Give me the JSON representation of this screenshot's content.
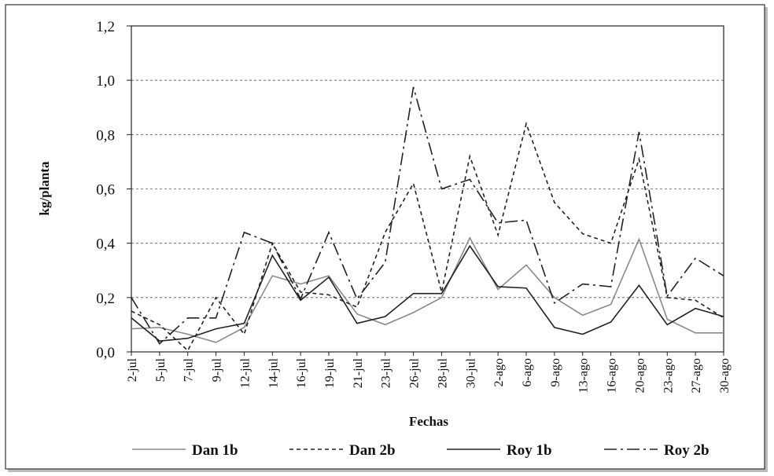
{
  "chart_data": {
    "type": "line",
    "y_label": "kg/planta",
    "x_label": "Fechas",
    "categories": [
      "2-jul",
      "5-jul",
      "7-jul",
      "9-jul",
      "12-jul",
      "14-jul",
      "16-jul",
      "19-jul",
      "21-jul",
      "23-jul",
      "26-jul",
      "28-jul",
      "30-jul",
      "2-ago",
      "6-ago",
      "9-ago",
      "13-ago",
      "16-ago",
      "20-ago",
      "23-ago",
      "27-ago",
      "30-ago"
    ],
    "series": [
      {
        "name": "Dan 1b",
        "color": "#8a8a8a",
        "line_style": "solid",
        "values": [
          0.085,
          0.09,
          0.065,
          0.035,
          0.09,
          0.28,
          0.25,
          0.28,
          0.14,
          0.1,
          0.145,
          0.2,
          0.42,
          0.23,
          0.32,
          0.2,
          0.135,
          0.175,
          0.415,
          0.12,
          0.07,
          0.07
        ]
      },
      {
        "name": "Dan 2b",
        "color": "#222222",
        "line_style": "dashed",
        "values": [
          0.15,
          0.1,
          0.005,
          0.2,
          0.065,
          0.4,
          0.22,
          0.21,
          0.165,
          0.44,
          0.62,
          0.22,
          0.72,
          0.43,
          0.84,
          0.55,
          0.435,
          0.4,
          0.71,
          0.2,
          0.19,
          0.125
        ]
      },
      {
        "name": "Roy 1b",
        "color": "#222222",
        "line_style": "solid",
        "values": [
          0.125,
          0.04,
          0.05,
          0.085,
          0.105,
          0.355,
          0.19,
          0.275,
          0.105,
          0.13,
          0.215,
          0.215,
          0.39,
          0.24,
          0.235,
          0.09,
          0.065,
          0.11,
          0.245,
          0.1,
          0.16,
          0.13
        ]
      },
      {
        "name": "Roy 2b",
        "color": "#222222",
        "line_style": "dashdot",
        "values": [
          0.2,
          0.03,
          0.125,
          0.125,
          0.44,
          0.4,
          0.195,
          0.44,
          0.195,
          0.33,
          0.975,
          0.6,
          0.635,
          0.475,
          0.485,
          0.18,
          0.25,
          0.24,
          0.81,
          0.205,
          0.345,
          0.28
        ]
      }
    ],
    "ylim": [
      0,
      1.2
    ],
    "yticks": [
      {
        "value": 0,
        "label": "0,0"
      },
      {
        "value": 0.2,
        "label": "0,2"
      },
      {
        "value": 0.4,
        "label": "0,4"
      },
      {
        "value": 0.6,
        "label": "0,6"
      },
      {
        "value": 0.8,
        "label": "0,8"
      },
      {
        "value": 1.0,
        "label": "1,0"
      },
      {
        "value": 1.2,
        "label": "1,2"
      }
    ],
    "grid": true
  }
}
